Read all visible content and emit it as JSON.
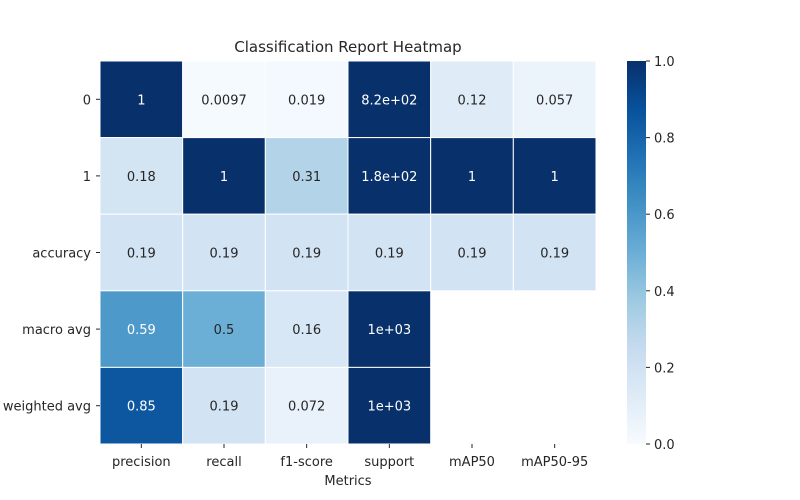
{
  "chart_data": {
    "type": "heatmap",
    "title": "Classification Report Heatmap",
    "xlabel": "Metrics",
    "ylabel": "",
    "columns": [
      "precision",
      "recall",
      "f1-score",
      "support",
      "mAP50",
      "mAP50-95"
    ],
    "rows": [
      "0",
      "1",
      "accuracy",
      "macro avg",
      "weighted avg"
    ],
    "cells": [
      [
        {
          "label": "1",
          "color_value": 1.0
        },
        {
          "label": "0.0097",
          "color_value": 0.0097
        },
        {
          "label": "0.019",
          "color_value": 0.019
        },
        {
          "label": "8.2e+02",
          "color_value": 1.0
        },
        {
          "label": "0.12",
          "color_value": 0.12
        },
        {
          "label": "0.057",
          "color_value": 0.057
        }
      ],
      [
        {
          "label": "0.18",
          "color_value": 0.18
        },
        {
          "label": "1",
          "color_value": 1.0
        },
        {
          "label": "0.31",
          "color_value": 0.31
        },
        {
          "label": "1.8e+02",
          "color_value": 1.0
        },
        {
          "label": "1",
          "color_value": 1.0
        },
        {
          "label": "1",
          "color_value": 1.0
        }
      ],
      [
        {
          "label": "0.19",
          "color_value": 0.19
        },
        {
          "label": "0.19",
          "color_value": 0.19
        },
        {
          "label": "0.19",
          "color_value": 0.19
        },
        {
          "label": "0.19",
          "color_value": 0.19
        },
        {
          "label": "0.19",
          "color_value": 0.19
        },
        {
          "label": "0.19",
          "color_value": 0.19
        }
      ],
      [
        {
          "label": "0.59",
          "color_value": 0.59
        },
        {
          "label": "0.5",
          "color_value": 0.5
        },
        {
          "label": "0.16",
          "color_value": 0.16
        },
        {
          "label": "1e+03",
          "color_value": 1.0
        },
        null,
        null
      ],
      [
        {
          "label": "0.85",
          "color_value": 0.85
        },
        {
          "label": "0.19",
          "color_value": 0.19
        },
        {
          "label": "0.072",
          "color_value": 0.072
        },
        {
          "label": "1e+03",
          "color_value": 1.0
        },
        null,
        null
      ]
    ],
    "colormap": "Blues",
    "colorbar": {
      "min": 0.0,
      "max": 1.0,
      "ticks": [
        "0.0",
        "0.2",
        "0.4",
        "0.6",
        "0.8",
        "1.0"
      ]
    }
  }
}
